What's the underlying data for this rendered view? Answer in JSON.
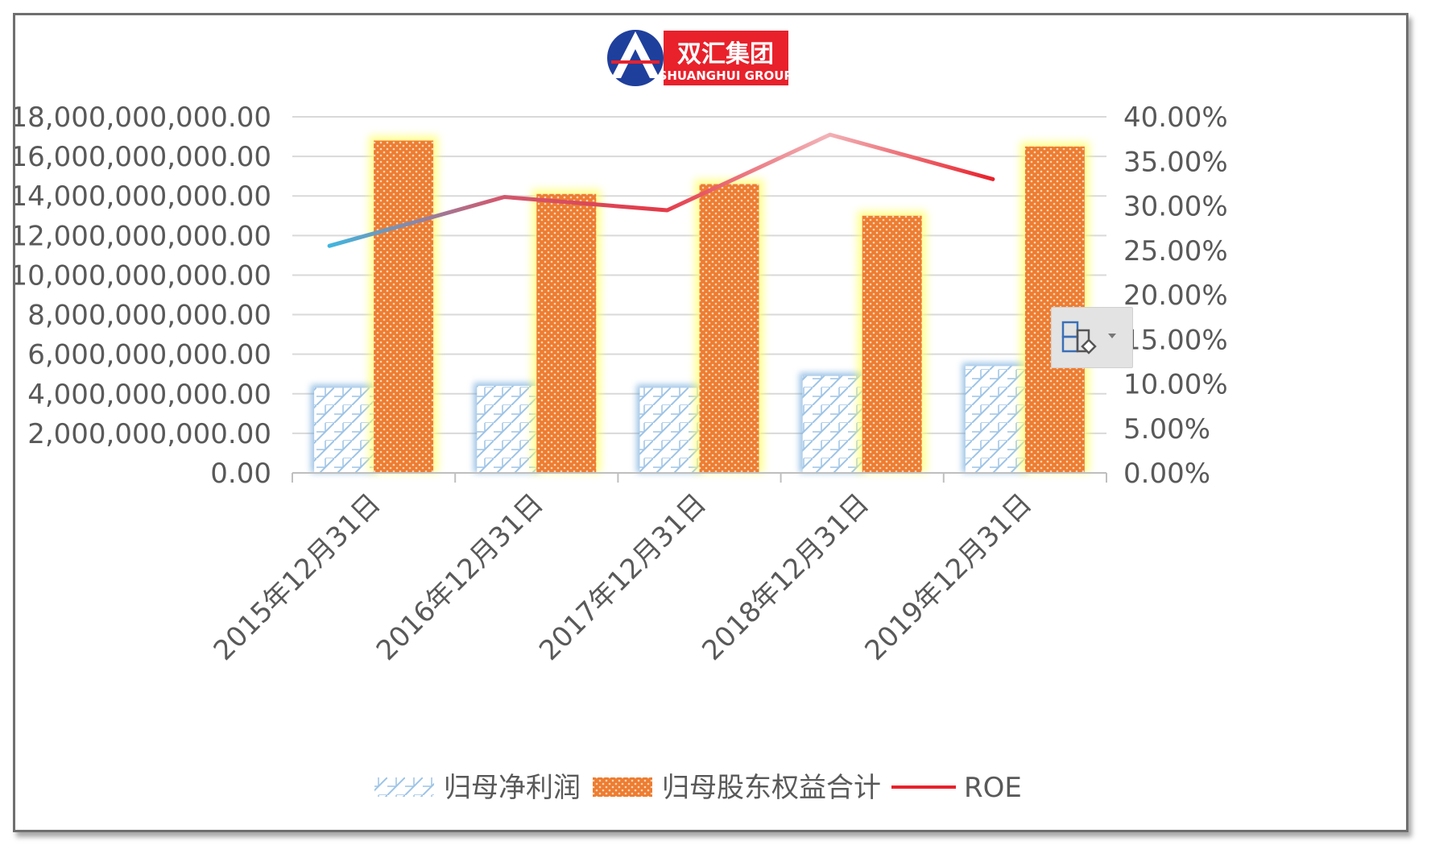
{
  "logo": {
    "name_cn": "双汇集团",
    "name_en": "SHUANGHUI GROUP",
    "brand_color": "#e8212b",
    "emblem_color": "#1f3f9c"
  },
  "chart_data": {
    "type": "bar",
    "title": "",
    "categories": [
      "2015年12月31日",
      "2016年12月31日",
      "2017年12月31日",
      "2018年12月31日",
      "2019年12月31日"
    ],
    "series": [
      {
        "name": "归母净利润",
        "type": "bar",
        "axis": "left",
        "values": [
          4300000000,
          4400000000,
          4300000000,
          4900000000,
          5400000000
        ],
        "color": "#9dc3e6",
        "glow": "#5b9bd5"
      },
      {
        "name": "归母股东权益合计",
        "type": "bar",
        "axis": "left",
        "values": [
          16800000000,
          14100000000,
          14600000000,
          13000000000,
          16500000000
        ],
        "color": "#ed7d31",
        "glow": "#ffff66"
      },
      {
        "name": "ROE",
        "type": "line",
        "axis": "right",
        "values": [
          0.255,
          0.31,
          0.295,
          0.38,
          0.33
        ],
        "color": "#e8212b"
      }
    ],
    "y_left": {
      "min": 0,
      "max": 18000000000,
      "step": 2000000000,
      "ticks": [
        "0.00",
        "2,000,000,000.00",
        "4,000,000,000.00",
        "6,000,000,000.00",
        "8,000,000,000.00",
        "10,000,000,000.00",
        "12,000,000,000.00",
        "14,000,000,000.00",
        "16,000,000,000.00",
        "18,000,000,000.00"
      ]
    },
    "y_right": {
      "min": 0,
      "max": 0.4,
      "step": 0.05,
      "ticks": [
        "0.00%",
        "5.00%",
        "10.00%",
        "15.00%",
        "20.00%",
        "25.00%",
        "30.00%",
        "35.00%",
        "40.00%"
      ]
    },
    "grid": true,
    "legend": "bottom"
  }
}
